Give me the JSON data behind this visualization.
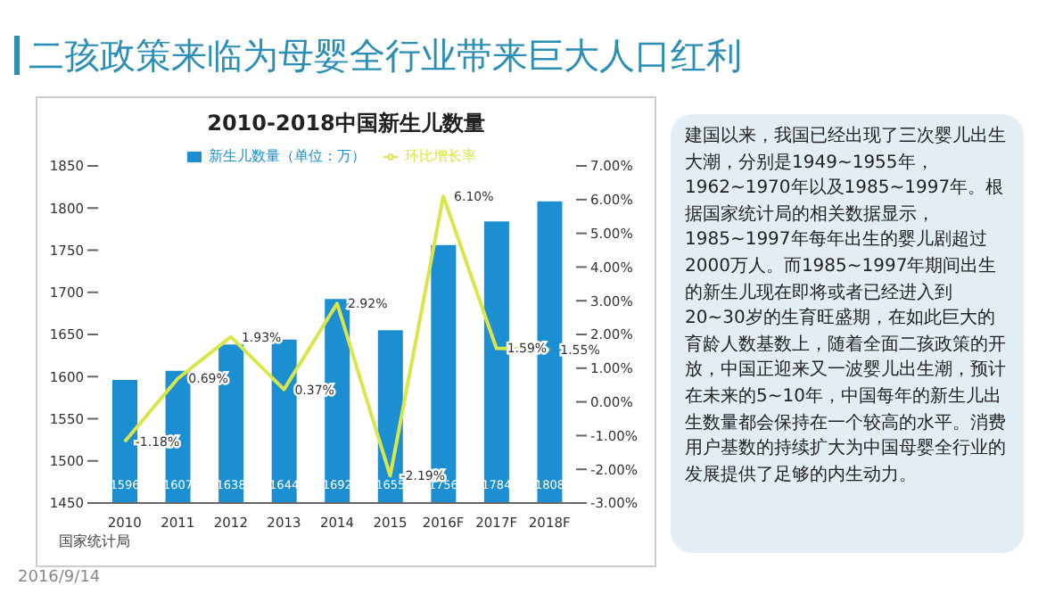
{
  "chart_data": {
    "type": "bar",
    "title": "二孩政策来临为母婴全行业带来巨大人口红利",
    "subtitle": "2010-2018中国新生儿数量",
    "categories": [
      "2010",
      "2011",
      "2012",
      "2013",
      "2014",
      "2015",
      "2016F",
      "2017F",
      "2018F"
    ],
    "series": [
      {
        "name": "新生儿数量（单位：万）",
        "color": "#1b8fd2",
        "values": [
          1596,
          1607,
          1638,
          1644,
          1692,
          1655,
          1756,
          1784,
          1808
        ],
        "value_labels": [
          "1596",
          "1607",
          "1638",
          "1644",
          "1692",
          "1655",
          "1756",
          "1784",
          "1808"
        ]
      },
      {
        "name": "环比增长率",
        "type": "line",
        "axis": "y2",
        "color": "#d9e64a",
        "values": [
          -1.18,
          0.69,
          1.93,
          0.37,
          2.92,
          -2.19,
          6.1,
          1.59,
          1.55
        ],
        "value_labels": [
          "-1.18%",
          "0.69%",
          "1.93%",
          "0.37%",
          "2.92%",
          "-2.19%",
          "6.10%",
          "1.59%",
          "1.55%"
        ]
      }
    ],
    "ylim": [
      1450,
      1850
    ],
    "yticks": [
      1450,
      1500,
      1550,
      1600,
      1650,
      1700,
      1750,
      1800,
      1850
    ],
    "y2lim": [
      -3,
      7
    ],
    "y2ticks": [
      {
        "value": -3,
        "label": "-3.00%"
      },
      {
        "value": -2,
        "label": "-2.00%"
      },
      {
        "value": -1,
        "label": "-1.00%"
      },
      {
        "value": 0,
        "label": "0.00%"
      },
      {
        "value": 1,
        "label": "1.00%"
      },
      {
        "value": 2,
        "label": "2.00%"
      },
      {
        "value": 3,
        "label": "3.00%"
      },
      {
        "value": 4,
        "label": "4.00%"
      },
      {
        "value": 5,
        "label": "5.00%"
      },
      {
        "value": 6,
        "label": "6.00%"
      },
      {
        "value": 7,
        "label": "7.00%"
      }
    ],
    "legend": "top",
    "grid": false,
    "marker": "none",
    "line_style": "solid",
    "annotations": [
      "国家统计局",
      "建国以来，我国已经出现了三次婴儿出生大潮，分别是1949~1955年，1962~1970年以及1985~1997年。根据国家统计局的相关数据显示，1985~1997年每年出生的婴儿剧超过2000万人。而1985~1997年期间出生的新生儿现在即将或者已经进入到20~30岁的生育旺盛期，在如此巨大的育龄人数基数上，随着全面二孩政策的开放，中国正迎来又一波婴儿出生潮，预计在未来的5~10年，中国每年的新生儿出生数量都会保持在一个较高的水平。消费用户基数的持续扩大为中国母婴全行业的发展提供了足够的内生动力。",
      "2016/9/14"
    ]
  }
}
